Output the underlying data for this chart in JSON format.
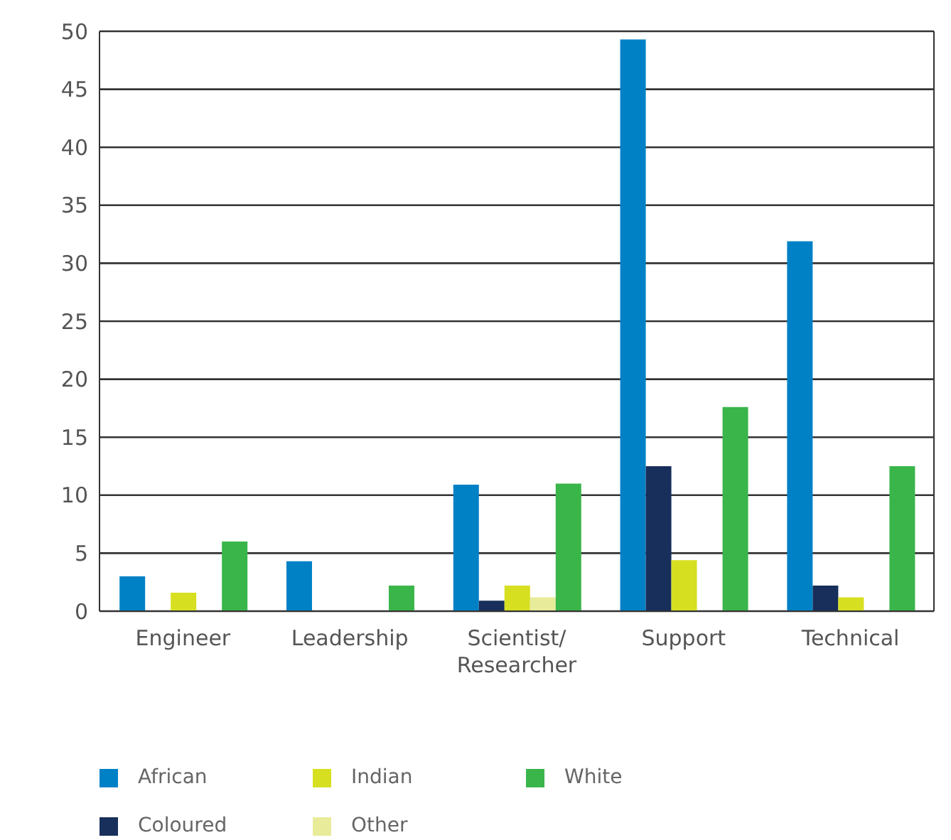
{
  "chart_data": {
    "type": "bar",
    "categories": [
      "Engineer",
      "Leadership",
      "Scientist/Researcher",
      "Support",
      "Technical"
    ],
    "series": [
      {
        "name": "African",
        "color": "#0081c6",
        "values": [
          3.0,
          4.3,
          10.9,
          49.3,
          31.9
        ]
      },
      {
        "name": "Coloured",
        "color": "#172f5a",
        "values": [
          0,
          0,
          0.9,
          12.5,
          2.2
        ]
      },
      {
        "name": "Indian",
        "color": "#d7df21",
        "values": [
          1.6,
          0,
          2.2,
          4.4,
          1.2
        ]
      },
      {
        "name": "Other",
        "color": "#e8ec9a",
        "values": [
          0,
          0,
          1.2,
          0,
          0
        ]
      },
      {
        "name": "White",
        "color": "#3ab54a",
        "values": [
          6.0,
          2.2,
          11.0,
          17.6,
          12.5
        ]
      }
    ],
    "ylim": [
      0,
      50
    ],
    "yticks": [
      0,
      5,
      10,
      15,
      20,
      25,
      30,
      35,
      40,
      45,
      50
    ],
    "grid": "y",
    "legend": "bottom"
  }
}
